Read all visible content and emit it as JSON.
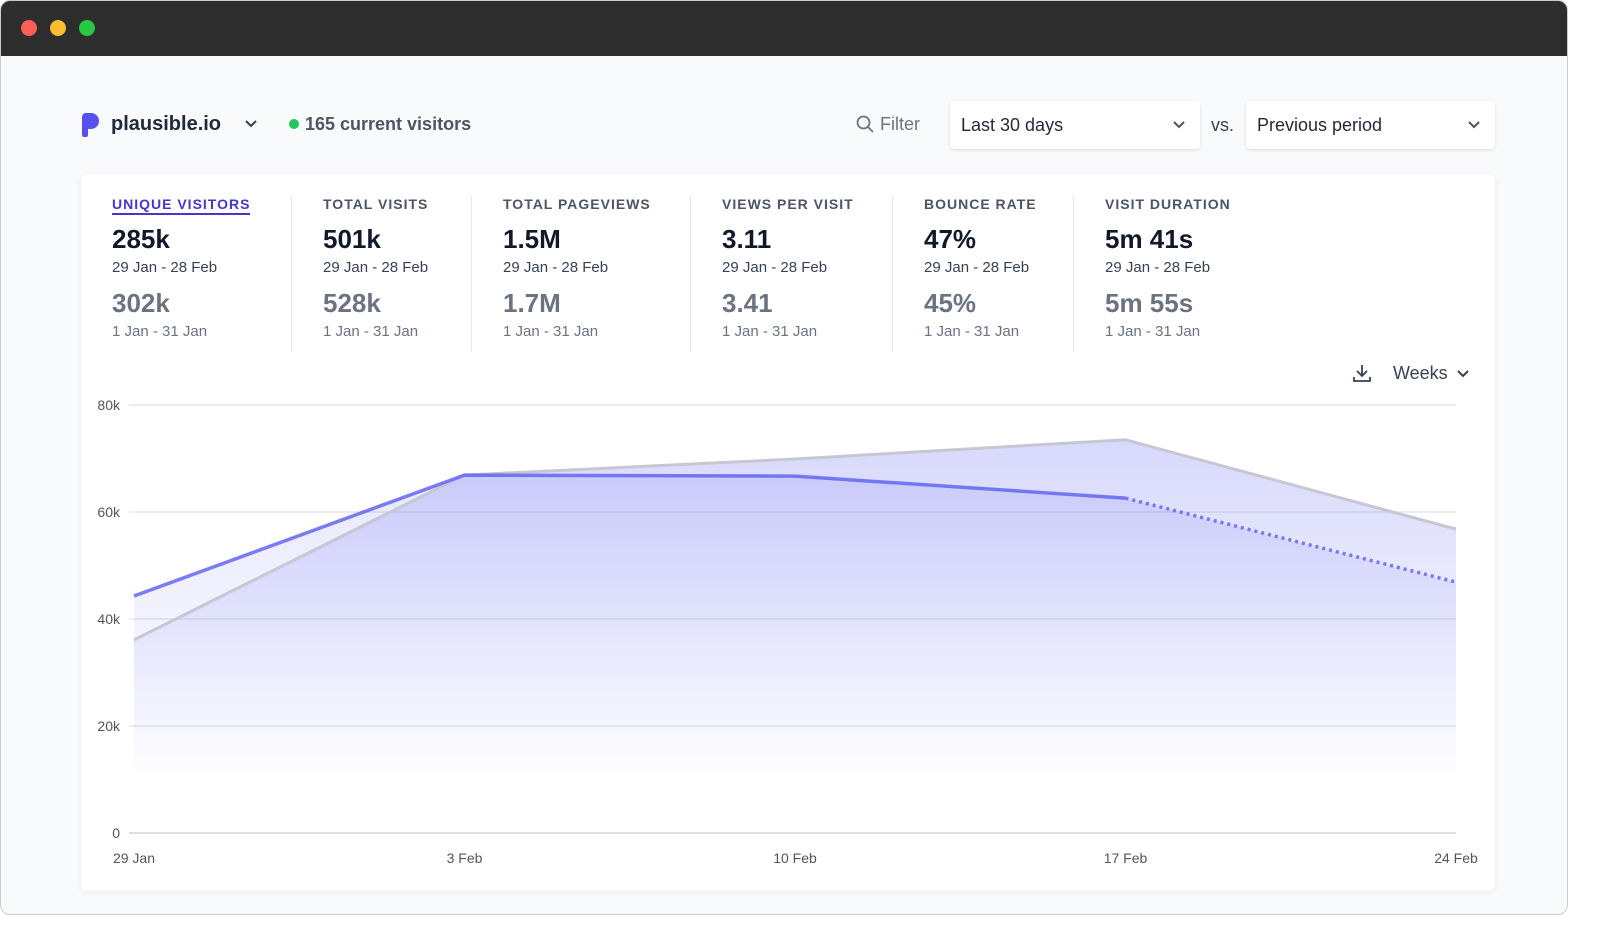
{
  "window": {
    "controls": [
      "close",
      "minimize",
      "maximize"
    ]
  },
  "header": {
    "site": "plausible.io",
    "current_visitors": "165 current visitors",
    "filter_label": "Filter",
    "period": "Last 30 days",
    "vs_label": "vs.",
    "comparison": "Previous period"
  },
  "stats": [
    {
      "label": "UNIQUE VISITORS",
      "value": "285k",
      "range": "29 Jan - 28 Feb",
      "prev_value": "302k",
      "prev_range": "1 Jan - 31 Jan",
      "active": true
    },
    {
      "label": "TOTAL VISITS",
      "value": "501k",
      "range": "29 Jan - 28 Feb",
      "prev_value": "528k",
      "prev_range": "1 Jan - 31 Jan"
    },
    {
      "label": "TOTAL PAGEVIEWS",
      "value": "1.5M",
      "range": "29 Jan - 28 Feb",
      "prev_value": "1.7M",
      "prev_range": "1 Jan - 31 Jan"
    },
    {
      "label": "VIEWS PER VISIT",
      "value": "3.11",
      "range": "29 Jan - 28 Feb",
      "prev_value": "3.41",
      "prev_range": "1 Jan - 31 Jan"
    },
    {
      "label": "BOUNCE RATE",
      "value": "47%",
      "range": "29 Jan - 28 Feb",
      "prev_value": "45%",
      "prev_range": "1 Jan - 31 Jan"
    },
    {
      "label": "VISIT DURATION",
      "value": "5m 41s",
      "range": "29 Jan - 28 Feb",
      "prev_value": "5m 55s",
      "prev_range": "1 Jan - 31 Jan"
    }
  ],
  "chart_controls": {
    "interval": "Weeks"
  },
  "chart_data": {
    "type": "line",
    "categories": [
      "29 Jan",
      "3 Feb",
      "10 Feb",
      "17 Feb",
      "24 Feb"
    ],
    "y_ticks": [
      "0",
      "20k",
      "40k",
      "60k",
      "80k"
    ],
    "ylim": [
      0,
      80000
    ],
    "grid": true,
    "series": [
      {
        "values": [
          44300,
          66900,
          66700,
          62600,
          46900
        ],
        "color": "#6366f1",
        "dotted_last_segment": true
      },
      {
        "values": [
          36100,
          66900,
          69900,
          73500,
          56800
        ],
        "color": "#c7c7d4",
        "area": true
      }
    ]
  }
}
